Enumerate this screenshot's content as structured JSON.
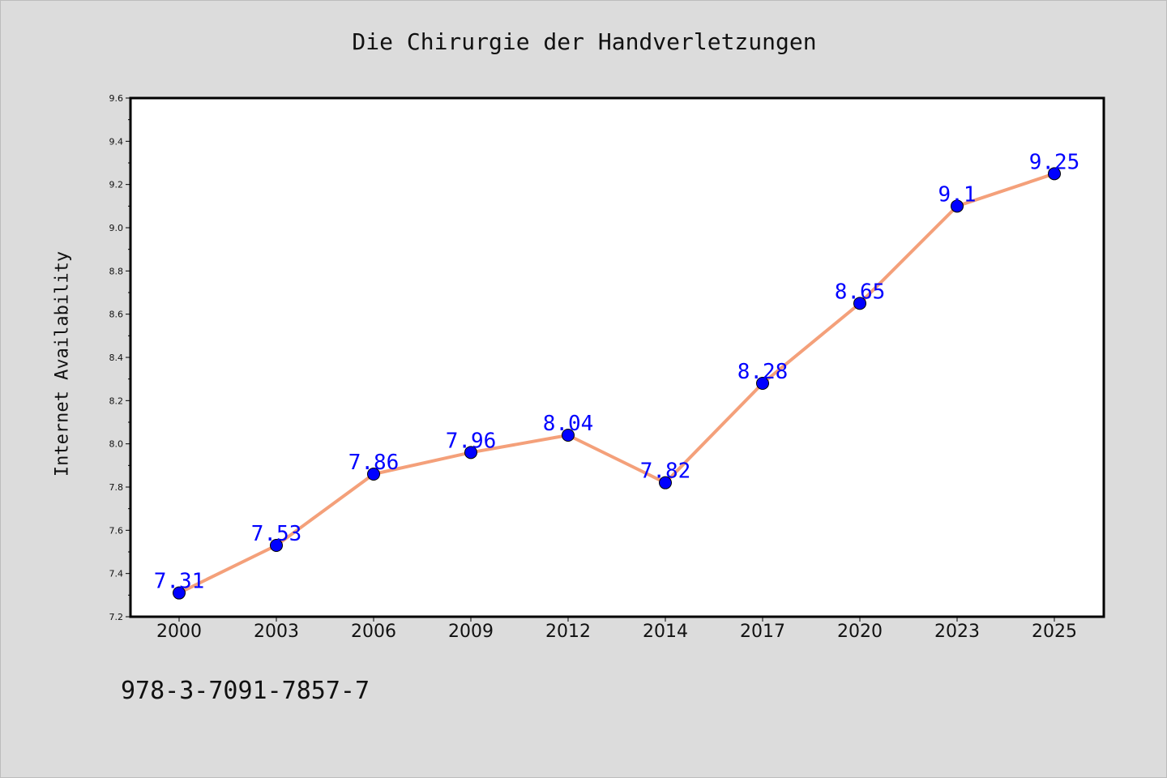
{
  "chart_data": {
    "type": "line",
    "title": "Die Chirurgie der Handverletzungen",
    "xlabel": "",
    "ylabel": "Internet Availability",
    "categories": [
      "2000",
      "2003",
      "2006",
      "2009",
      "2012",
      "2014",
      "2017",
      "2020",
      "2023",
      "2025"
    ],
    "series": [
      {
        "values": [
          7.31,
          7.53,
          7.86,
          7.96,
          8.04,
          7.82,
          8.28,
          8.65,
          9.1,
          9.25
        ]
      }
    ],
    "data_labels": [
      "7.31",
      "7.53",
      "7.86",
      "7.96",
      "8.04",
      "7.82",
      "8.28",
      "8.65",
      "9.1",
      "9.25"
    ],
    "y_ticks": [
      "7.2",
      "7.4",
      "7.6",
      "7.8",
      "8.0",
      "8.2",
      "8.4",
      "8.6",
      "8.8",
      "9.0",
      "9.2",
      "9.4",
      "9.6"
    ],
    "ylim": [
      7.2,
      9.6
    ],
    "grid": false,
    "legend": "none",
    "colors": {
      "line": "#f4a07a",
      "marker": "#0000ff",
      "label": "#0000ff",
      "plot_background": "#ffffff",
      "page_background": "#dcdcdc"
    }
  },
  "footer": {
    "identifier": "978-3-7091-7857-7"
  }
}
